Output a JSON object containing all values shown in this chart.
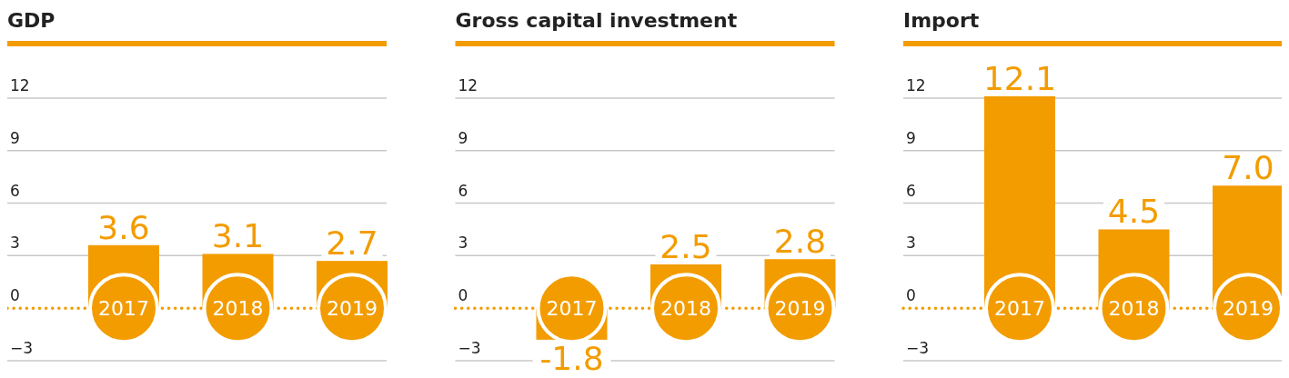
{
  "chart_data": [
    {
      "type": "bar",
      "title": "GDP",
      "categories": [
        "2017",
        "2018",
        "2019"
      ],
      "values": [
        3.6,
        3.1,
        2.7
      ],
      "value_labels": [
        "3.6",
        "3.1",
        "2.7"
      ],
      "color": "#f39c00",
      "ylim": [
        -3,
        12.1
      ],
      "yticks": [
        -3,
        0,
        3,
        6,
        9,
        12
      ],
      "grid": "y",
      "ref_lines": [
        {
          "axis": "y",
          "value": 0,
          "color": "#f39c00",
          "line_style": "dotted"
        }
      ]
    },
    {
      "type": "bar",
      "title": "Gross capital investment",
      "categories": [
        "2017",
        "2018",
        "2019"
      ],
      "values": [
        -1.8,
        2.5,
        2.8
      ],
      "value_labels": [
        "-1.8",
        "2.5",
        "2.8"
      ],
      "color": "#f39c00",
      "ylim": [
        -3,
        12.1
      ],
      "yticks": [
        -3,
        0,
        3,
        6,
        9,
        12
      ],
      "grid": "y",
      "ref_lines": [
        {
          "axis": "y",
          "value": 0,
          "color": "#f39c00",
          "line_style": "dotted"
        }
      ]
    },
    {
      "type": "bar",
      "title": "Import",
      "categories": [
        "2017",
        "2018",
        "2019"
      ],
      "values": [
        12.1,
        4.5,
        7.0
      ],
      "value_labels": [
        "12.1",
        "4.5",
        "7.0"
      ],
      "color": "#f39c00",
      "ylim": [
        -3,
        12.1
      ],
      "yticks": [
        -3,
        0,
        3,
        6,
        9,
        12
      ],
      "grid": "y",
      "ref_lines": [
        {
          "axis": "y",
          "value": 0,
          "color": "#f39c00",
          "line_style": "dotted"
        }
      ]
    }
  ]
}
